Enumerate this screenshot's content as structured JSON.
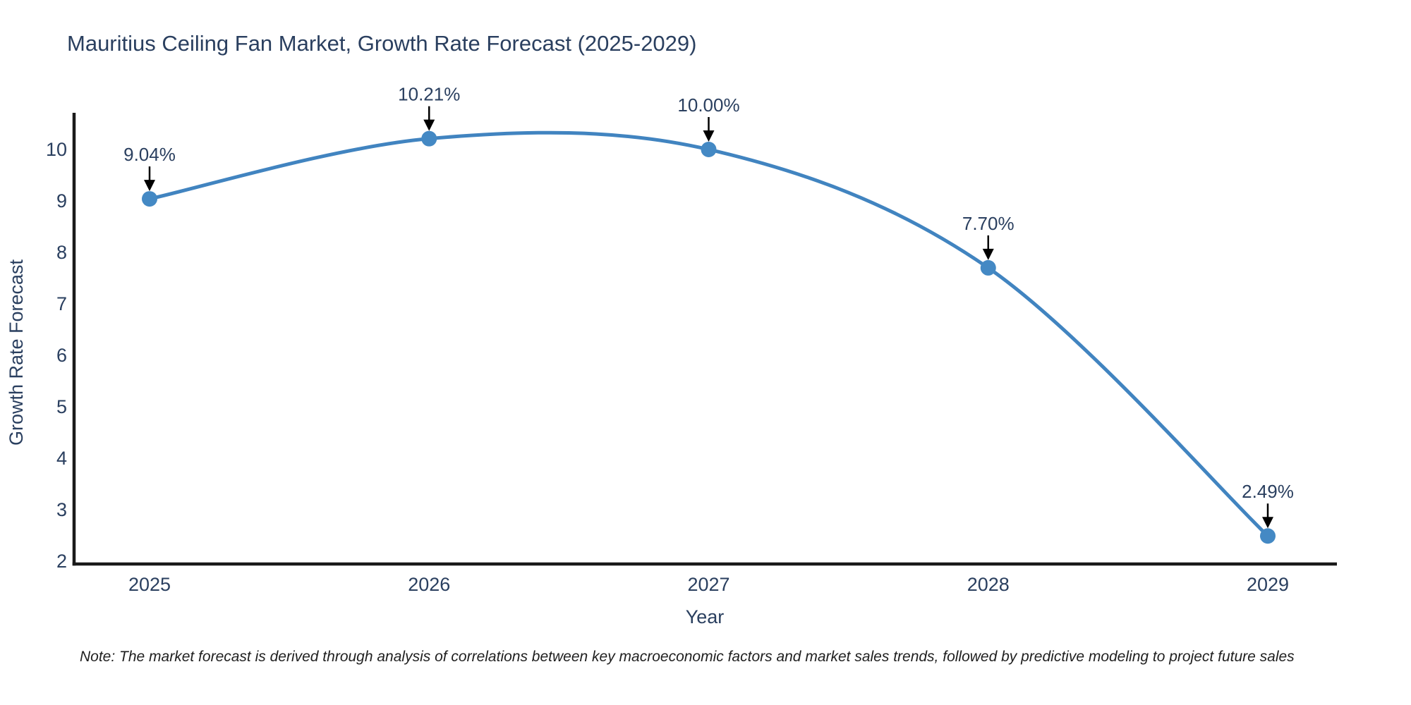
{
  "note": "Note: The market forecast is derived through analysis of correlations between key macroeconomic factors and market sales trends, followed by predictive modeling to project future sales",
  "chart_data": {
    "type": "line",
    "title": "Mauritius Ceiling Fan Market, Growth Rate Forecast (2025-2029)",
    "xlabel": "Year",
    "ylabel": "Growth Rate Forecast",
    "categories": [
      "2025",
      "2026",
      "2027",
      "2028",
      "2029"
    ],
    "values": [
      9.04,
      10.21,
      10.0,
      7.7,
      2.49
    ],
    "point_labels": [
      "9.04%",
      "10.21%",
      "10.00%",
      "7.70%",
      "2.49%"
    ],
    "yticks": [
      2,
      3,
      4,
      5,
      6,
      7,
      8,
      9,
      10
    ],
    "ylim": [
      2,
      10.7
    ],
    "line_shape": "spline",
    "grid": false,
    "legend": "none",
    "colors": {
      "line": "#4184c0",
      "marker": "#4489c4",
      "arrow": "#000000",
      "axis": "#1a1a1a",
      "text": "#2a3f5f"
    }
  }
}
